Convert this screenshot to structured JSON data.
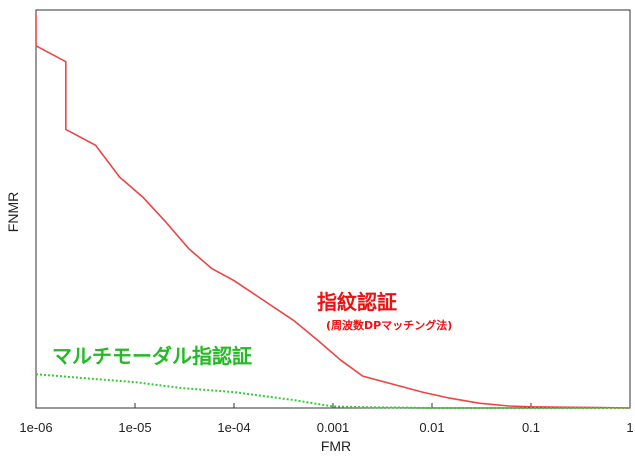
{
  "chart_data": {
    "type": "line",
    "xlabel": "FMR",
    "ylabel": "FNMR",
    "x_scale": "log",
    "xlim": [
      1e-06,
      1
    ],
    "x_ticks": [
      "1e-06",
      "1e-05",
      "1e-04",
      "0.001",
      "0.01",
      "0.1",
      "1"
    ],
    "ylim": [
      0,
      1
    ],
    "grid": false,
    "series": [
      {
        "color": "#ee4444",
        "style": "solid",
        "x": [
          1e-06,
          1e-06,
          2e-06,
          2e-06,
          4e-06,
          7e-06,
          1.2e-05,
          2e-05,
          3.5e-05,
          6e-05,
          0.0001,
          0.0002,
          0.0004,
          0.0007,
          0.0012,
          0.002,
          0.004,
          0.008,
          0.015,
          0.03,
          0.06,
          0.1,
          0.2,
          0.5,
          1
        ],
        "y": [
          0.99,
          0.91,
          0.87,
          0.7,
          0.66,
          0.58,
          0.53,
          0.47,
          0.4,
          0.35,
          0.32,
          0.27,
          0.22,
          0.17,
          0.12,
          0.08,
          0.06,
          0.04,
          0.025,
          0.012,
          0.005,
          0.003,
          0.002,
          0.001,
          0.0
        ]
      },
      {
        "color": "#33cc33",
        "style": "dotted",
        "x": [
          1e-06,
          3e-06,
          1e-05,
          3e-05,
          0.0001,
          0.0002,
          0.0004,
          0.0007,
          0.001,
          0.002,
          0.005,
          0.01,
          0.1,
          1
        ],
        "y": [
          0.085,
          0.075,
          0.065,
          0.05,
          0.04,
          0.03,
          0.02,
          0.01,
          0.004,
          0.002,
          0.001,
          0.0,
          0.0,
          0.0
        ]
      }
    ],
    "annotations": {
      "fingerprint": {
        "title": "指紋認証",
        "subtitle": "(周波数DPマッチング法)",
        "color": "#ee1111"
      },
      "multimodal": {
        "title": "マルチモーダル指認証",
        "color": "#22bb22"
      }
    }
  }
}
